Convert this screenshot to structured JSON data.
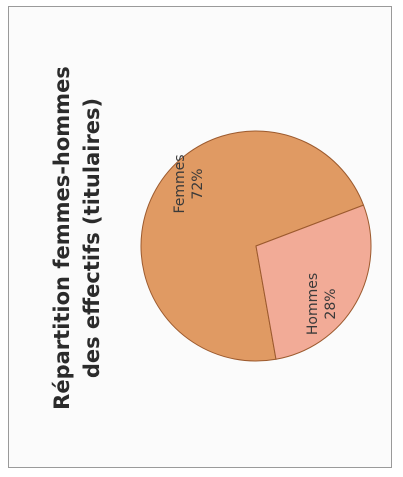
{
  "chart_data": {
    "type": "pie",
    "title_lines": [
      "Répartition femmes-hommes",
      "des effectifs (titulaires)"
    ],
    "slices": [
      {
        "name": "Femmes",
        "value": 72,
        "label": "72%",
        "color": "#e09a63"
      },
      {
        "name": "Hommes",
        "value": 28,
        "label": "28%",
        "color": "#f2ab97"
      }
    ],
    "edge_color": "#9c5a2e",
    "legend": "none"
  }
}
